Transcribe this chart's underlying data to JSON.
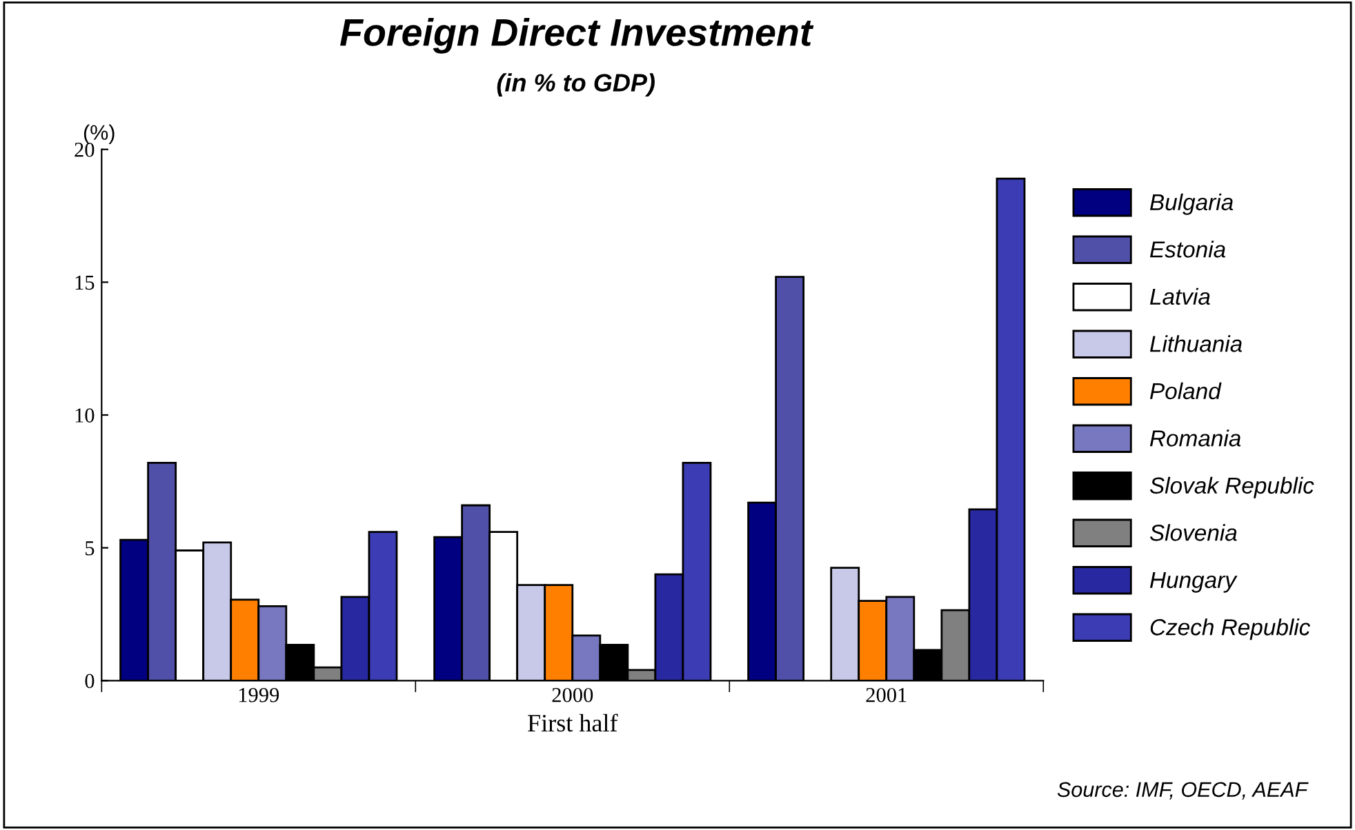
{
  "chart_data": {
    "type": "bar",
    "title": "Foreign Direct Investment",
    "subtitle": "(in % to GDP)",
    "ylabel": "(%)",
    "xlabel": "First half",
    "categories": [
      "1999",
      "2000",
      "2001"
    ],
    "series": [
      {
        "name": "Bulgaria",
        "color": "#000080",
        "values": [
          5.3,
          5.4,
          6.7
        ]
      },
      {
        "name": "Estonia",
        "color": "#5050a8",
        "values": [
          8.2,
          6.6,
          15.2
        ]
      },
      {
        "name": "Latvia",
        "color": "#ffffff",
        "values": [
          4.9,
          5.6,
          null
        ]
      },
      {
        "name": "Lithuania",
        "color": "#c8c8e8",
        "values": [
          5.2,
          3.6,
          4.25
        ]
      },
      {
        "name": "Poland",
        "color": "#ff8000",
        "values": [
          3.05,
          3.6,
          3.0
        ]
      },
      {
        "name": "Romania",
        "color": "#7878c0",
        "values": [
          2.8,
          1.7,
          3.15
        ]
      },
      {
        "name": "Slovak Republic",
        "color": "#000000",
        "values": [
          1.35,
          1.35,
          1.15
        ]
      },
      {
        "name": "Slovenia",
        "color": "#808080",
        "values": [
          0.5,
          0.4,
          2.65
        ]
      },
      {
        "name": "Hungary",
        "color": "#2828a0",
        "values": [
          3.15,
          4.0,
          6.45
        ]
      },
      {
        "name": "Czech Republic",
        "color": "#3c3cb4",
        "values": [
          5.6,
          8.2,
          18.9
        ]
      }
    ],
    "ylim": [
      0,
      20
    ],
    "yticks": [
      0,
      5,
      10,
      15,
      20
    ],
    "grid": false,
    "legend": "right",
    "annotations": [
      "Source: IMF, OECD, AEAF"
    ]
  }
}
